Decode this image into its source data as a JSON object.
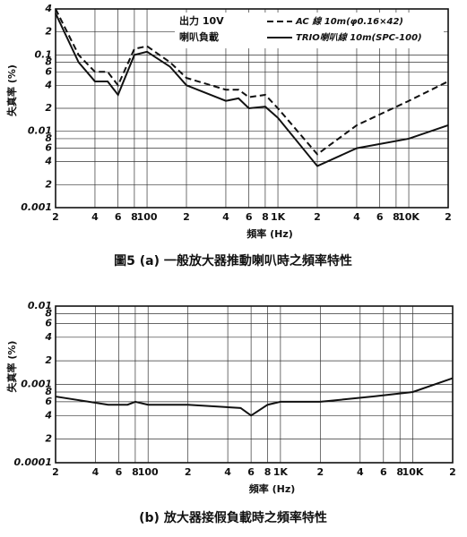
{
  "chart_data": [
    {
      "type": "line",
      "caption": "圖5 (a) 一般放大器推動喇叭時之頻率特性",
      "xlabel": "頻率 (Hz)",
      "ylabel": "失真率 (%)",
      "annotations": [
        "出力 10V",
        "喇叭負載"
      ],
      "xscale": "log",
      "yscale": "log",
      "grid": true,
      "xlim": [
        20,
        20000
      ],
      "ylim": [
        0.001,
        0.4
      ],
      "xticks": [
        {
          "value": 20,
          "label": "2"
        },
        {
          "value": 40,
          "label": "4"
        },
        {
          "value": 60,
          "label": "6"
        },
        {
          "value": 80,
          "label": "8"
        },
        100,
        {
          "value": 200,
          "label": "2"
        },
        {
          "value": 400,
          "label": "4"
        },
        {
          "value": 600,
          "label": "6"
        },
        {
          "value": 800,
          "label": "8"
        },
        {
          "value": 1000,
          "label": "1K"
        },
        {
          "value": 2000,
          "label": "2"
        },
        {
          "value": 4000,
          "label": "4"
        },
        {
          "value": 6000,
          "label": "6"
        },
        {
          "value": 8000,
          "label": "8"
        },
        {
          "value": 10000,
          "label": "10K"
        },
        {
          "value": 20000,
          "label": "2"
        }
      ],
      "yticks": [
        {
          "value": 0.4,
          "label": "4"
        },
        {
          "value": 0.2,
          "label": "2"
        },
        0.1,
        {
          "value": 0.08,
          "label": "8"
        },
        {
          "value": 0.06,
          "label": "6"
        },
        {
          "value": 0.04,
          "label": "4"
        },
        {
          "value": 0.02,
          "label": "2"
        },
        0.01,
        {
          "value": 0.008,
          "label": "8"
        },
        {
          "value": 0.006,
          "label": "6"
        },
        {
          "value": 0.004,
          "label": "4"
        },
        {
          "value": 0.002,
          "label": "2"
        },
        0.001
      ],
      "x": [
        20,
        30,
        40,
        50,
        60,
        80,
        100,
        150,
        200,
        400,
        500,
        600,
        800,
        1000,
        2000,
        4000,
        10000,
        20000
      ],
      "series": [
        {
          "name": "AC 線 10m(φ0.16×42)",
          "color": "#111",
          "dash": true,
          "values": [
            0.4,
            0.1,
            0.06,
            0.06,
            0.04,
            0.12,
            0.13,
            0.08,
            0.05,
            0.035,
            0.035,
            0.028,
            0.03,
            0.02,
            0.005,
            0.012,
            0.025,
            0.045
          ]
        },
        {
          "name": "TRIO喇叭線 10m(SPC-100)",
          "color": "#111",
          "dash": false,
          "values": [
            0.35,
            0.08,
            0.045,
            0.045,
            0.03,
            0.1,
            0.11,
            0.07,
            0.04,
            0.025,
            0.027,
            0.02,
            0.021,
            0.015,
            0.0035,
            0.006,
            0.008,
            0.012
          ]
        }
      ]
    },
    {
      "type": "line",
      "caption": "(b) 放大器接假負載時之頻率特性",
      "xlabel": "頻率 (Hz)",
      "ylabel": "失真率 (%)",
      "xscale": "log",
      "yscale": "log",
      "grid": true,
      "xlim": [
        20,
        20000
      ],
      "ylim": [
        0.0001,
        0.01
      ],
      "xticks": [
        {
          "value": 20,
          "label": "2"
        },
        {
          "value": 40,
          "label": "4"
        },
        {
          "value": 60,
          "label": "6"
        },
        {
          "value": 80,
          "label": "8"
        },
        100,
        {
          "value": 200,
          "label": "2"
        },
        {
          "value": 400,
          "label": "4"
        },
        {
          "value": 600,
          "label": "6"
        },
        {
          "value": 800,
          "label": "8"
        },
        {
          "value": 1000,
          "label": "1K"
        },
        {
          "value": 2000,
          "label": "2"
        },
        {
          "value": 4000,
          "label": "4"
        },
        {
          "value": 6000,
          "label": "6"
        },
        {
          "value": 8000,
          "label": "8"
        },
        {
          "value": 10000,
          "label": "10K"
        },
        {
          "value": 20000,
          "label": "2"
        }
      ],
      "yticks": [
        0.01,
        {
          "value": 0.008,
          "label": "8"
        },
        {
          "value": 0.006,
          "label": "6"
        },
        {
          "value": 0.004,
          "label": "4"
        },
        {
          "value": 0.002,
          "label": "2"
        },
        0.001,
        {
          "value": 0.0008,
          "label": "8"
        },
        {
          "value": 0.0006,
          "label": "6"
        },
        {
          "value": 0.0004,
          "label": "4"
        },
        {
          "value": 0.0002,
          "label": "2"
        },
        {
          "value": 0.0001,
          "label": "0.0001"
        }
      ],
      "x": [
        20,
        50,
        70,
        80,
        100,
        200,
        500,
        600,
        800,
        1000,
        2000,
        5000,
        10000,
        20000
      ],
      "series": [
        {
          "color": "#111",
          "dash": false,
          "values": [
            0.0007,
            0.00055,
            0.00055,
            0.0006,
            0.00055,
            0.00055,
            0.0005,
            0.0004,
            0.00055,
            0.0006,
            0.0006,
            0.0007,
            0.0008,
            0.0012
          ]
        }
      ]
    }
  ]
}
